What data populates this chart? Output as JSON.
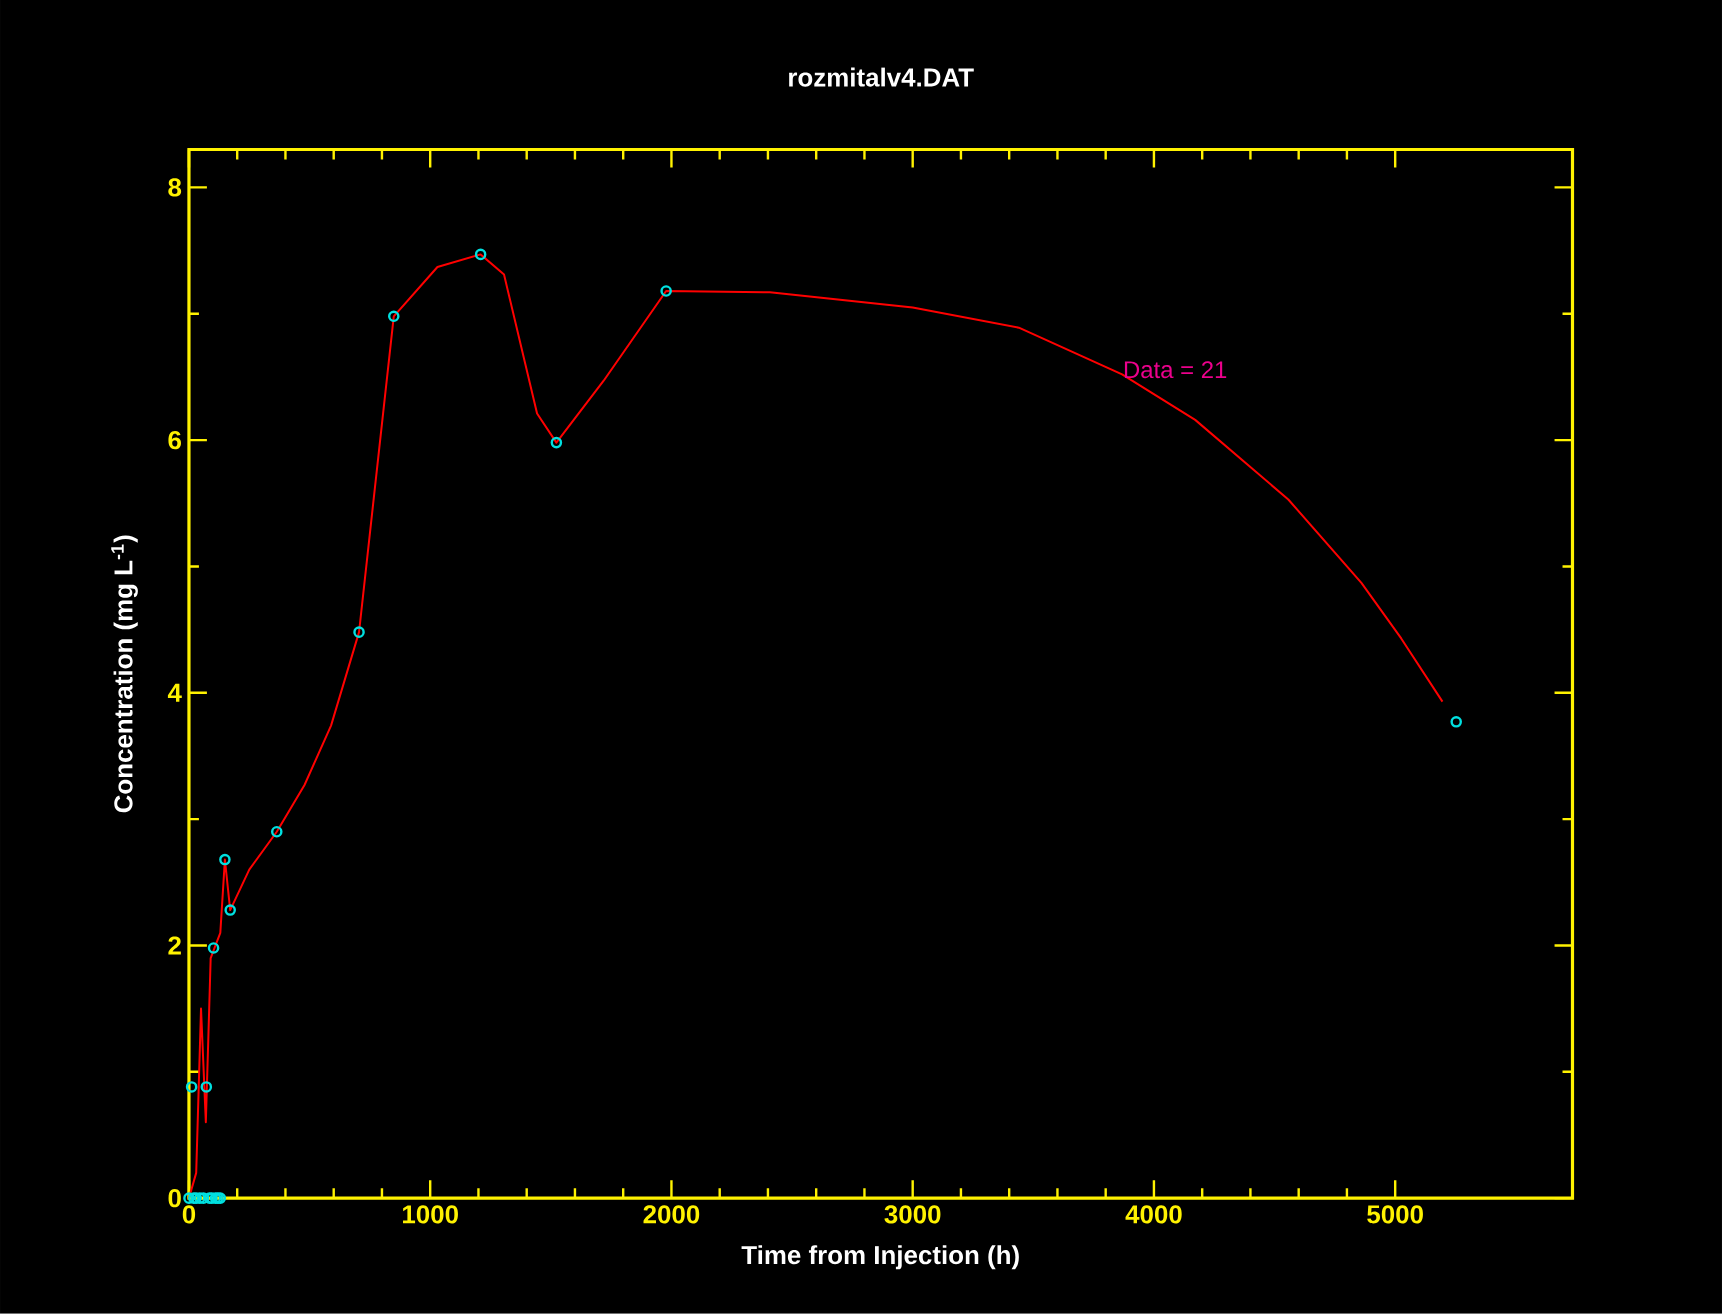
{
  "chart_data": {
    "type": "scatter",
    "title": "rozmitalv4.DAT",
    "xlabel": "Time from Injection (h)",
    "ylabel": "Concentration (mg L$^{-1}$)",
    "xlim": [
      0,
      5735
    ],
    "ylim": [
      0,
      8.3
    ],
    "xticks": [
      0,
      1000,
      2000,
      3000,
      4000,
      5000
    ],
    "yticks": [
      0,
      2,
      4,
      6,
      8
    ],
    "annotations": [
      "Data =  21"
    ],
    "series": [
      {
        "marker": "circle",
        "color": "#00e0e0",
        "x": [
          0,
          11,
          20,
          30,
          45,
          60,
          72,
          85,
          95,
          102,
          110,
          120,
          130,
          149,
          171,
          364,
          705,
          849,
          1209,
          1523,
          1978,
          5253
        ],
        "values": [
          0,
          0.88,
          0,
          0,
          0,
          0,
          0.88,
          0,
          0,
          1.98,
          0,
          0,
          0,
          2.68,
          2.28,
          2.9,
          4.48,
          6.98,
          7.47,
          5.98,
          7.18,
          3.77
        ]
      },
      {
        "type": "line",
        "marker": "none",
        "color": "#ff0000",
        "x": [
          0,
          30,
          50,
          70,
          90,
          110,
          130,
          149,
          171,
          250,
          364,
          479,
          589,
          705,
          849,
          1030,
          1209,
          1306,
          1443,
          1523,
          1719,
          1978,
          2408,
          3000,
          3440,
          3868,
          4171,
          4557,
          4860,
          5025,
          5196
        ],
        "values": [
          0,
          0.2,
          1.5,
          0.6,
          1.9,
          2.0,
          2.1,
          2.68,
          2.28,
          2.6,
          2.9,
          3.27,
          3.74,
          4.48,
          6.98,
          7.37,
          7.47,
          7.31,
          6.21,
          5.98,
          6.47,
          7.18,
          7.17,
          7.05,
          6.89,
          6.52,
          6.16,
          5.53,
          4.87,
          4.43,
          3.93
        ]
      }
    ]
  }
}
